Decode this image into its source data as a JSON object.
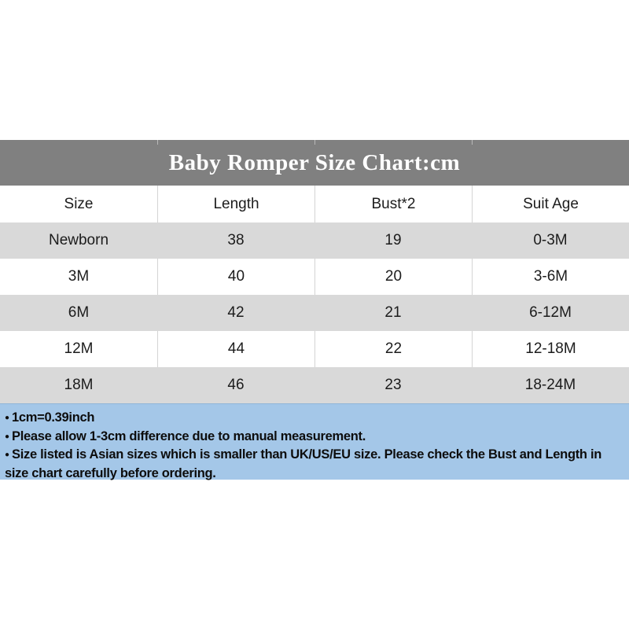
{
  "title": "Baby Romper Size Chart:cm",
  "bullet": "●",
  "table": {
    "headers": [
      "Size",
      "Length",
      "Bust*2",
      "Suit Age"
    ],
    "rows": [
      [
        "Newborn",
        "38",
        "19",
        "0-3M"
      ],
      [
        "3M",
        "40",
        "20",
        "3-6M"
      ],
      [
        "6M",
        "42",
        "21",
        "6-12M"
      ],
      [
        "12M",
        "44",
        "22",
        "12-18M"
      ],
      [
        "18M",
        "46",
        "23",
        "18-24M"
      ]
    ]
  },
  "notes": [
    "1cm=0.39inch",
    "Please allow 1-3cm difference due to manual measurement.",
    "Size listed is Asian sizes which is smaller than UK/US/EU size. Please check the Bust and Length in size chart carefully before ordering."
  ],
  "colors": {
    "title_band_bg": "#808080",
    "title_text": "#ffffff",
    "row_alt_bg": "#d9d9d9",
    "row_bg": "#ffffff",
    "separator": "#d4d4d4",
    "notes_bg": "#a4c7e8",
    "text": "#1a1a1a"
  },
  "chart_data": {
    "type": "table",
    "title": "Baby Romper Size Chart:cm",
    "columns": [
      "Size",
      "Length",
      "Bust*2",
      "Suit Age"
    ],
    "rows": [
      [
        "Newborn",
        "38",
        "19",
        "0-3M"
      ],
      [
        "3M",
        "40",
        "20",
        "3-6M"
      ],
      [
        "6M",
        "42",
        "21",
        "6-12M"
      ],
      [
        "12M",
        "44",
        "22",
        "12-18M"
      ],
      [
        "18M",
        "46",
        "23",
        "18-24M"
      ]
    ],
    "units": "cm",
    "footnotes": [
      "1cm=0.39inch",
      "Please allow 1-3cm difference due to manual measurement.",
      "Size listed is Asian sizes which is smaller than UK/US/EU size. Please check the Bust and Length in size chart carefully before ordering."
    ]
  }
}
